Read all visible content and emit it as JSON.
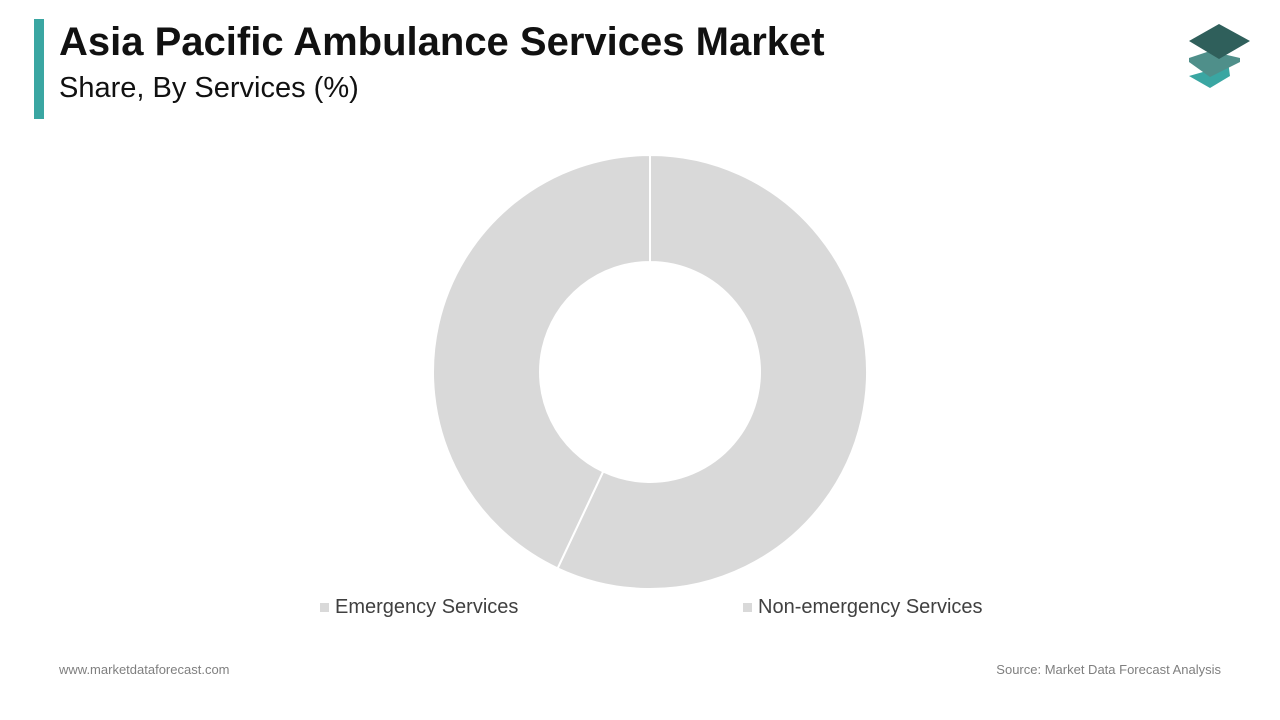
{
  "header": {
    "title": "Asia Pacific Ambulance Services Market",
    "subtitle": "Share, By Services (%)",
    "accent_color": "#3aa6a2"
  },
  "logo": {
    "icon": "stacked-layers-logo-icon",
    "colors": [
      "#2f5f5b",
      "#4f8f8a",
      "#3aa6a2"
    ]
  },
  "chart_data": {
    "type": "pie",
    "variant": "donut",
    "title": "Share, By Services (%)",
    "categories": [
      "Emergency Services",
      "Non-emergency Services"
    ],
    "values": [
      57,
      43
    ],
    "unit": "%",
    "colors": [
      "#d9d9d9",
      "#d9d9d9"
    ],
    "legend_position": "bottom",
    "start_angle": "top, clockwise"
  },
  "legend": {
    "items": [
      {
        "label": "Emergency Services"
      },
      {
        "label": "Non-emergency Services"
      }
    ]
  },
  "footer": {
    "website": "www.marketdataforecast.com",
    "source": "Source: Market Data Forecast Analysis"
  }
}
